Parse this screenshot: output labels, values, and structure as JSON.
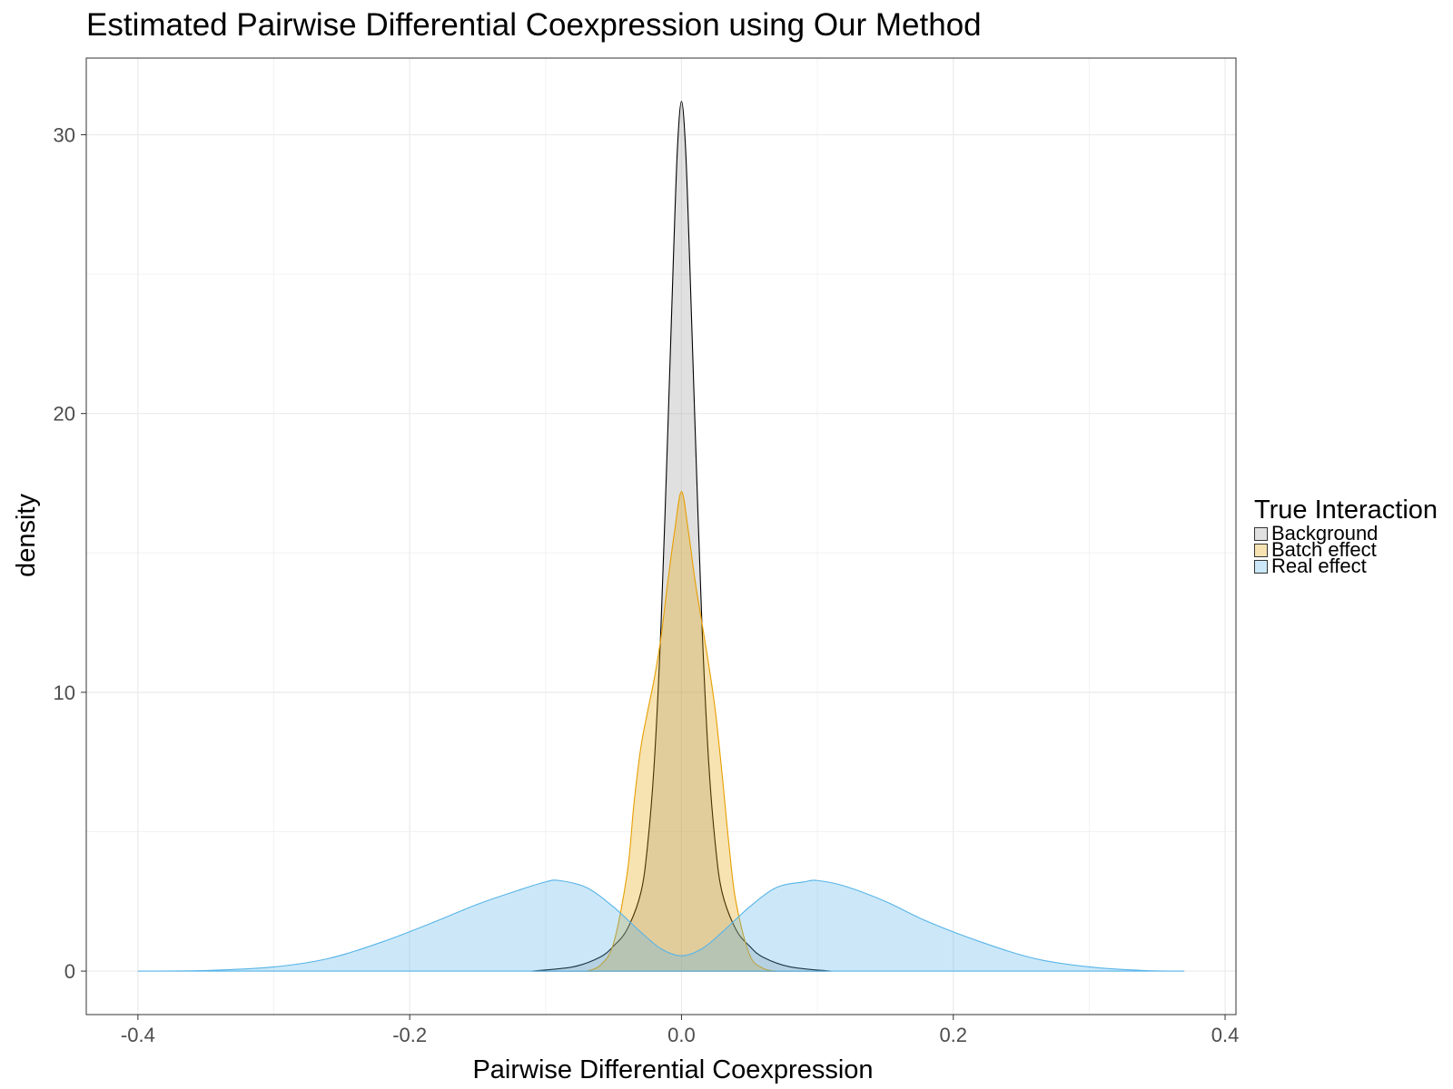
{
  "chart_data": {
    "type": "area",
    "title": "Estimated Pairwise Differential Coexpression using Our Method",
    "xlabel": "Pairwise Differential Coexpression",
    "ylabel": "density",
    "xlim": [
      -0.438,
      0.408
    ],
    "ylim": [
      -1.56,
      32.75
    ],
    "x_ticks": [
      -0.4,
      -0.2,
      0.0,
      0.2,
      0.4
    ],
    "x_tick_labels": [
      "-0.4",
      "-0.2",
      "0.0",
      "0.2",
      "0.4"
    ],
    "y_ticks": [
      0,
      10,
      20,
      30
    ],
    "y_tick_labels": [
      "0",
      "10",
      "20",
      "30"
    ],
    "grid": true,
    "legend": {
      "title": "True Interaction",
      "placement": "right"
    },
    "series": [
      {
        "name": "Background",
        "fill": "#999999",
        "stroke": "#000000",
        "x": [
          -0.11,
          -0.08,
          -0.06,
          -0.05,
          -0.04,
          -0.03,
          -0.025,
          -0.02,
          -0.015,
          -0.01,
          -0.006,
          -0.003,
          0.0,
          0.003,
          0.006,
          0.01,
          0.015,
          0.02,
          0.025,
          0.03,
          0.04,
          0.05,
          0.06,
          0.08,
          0.11
        ],
        "y": [
          0.0,
          0.15,
          0.5,
          0.9,
          1.5,
          2.8,
          4.5,
          7.5,
          12.5,
          19.5,
          25.5,
          29.5,
          31.2,
          29.5,
          25.5,
          19.5,
          12.5,
          7.5,
          4.5,
          2.8,
          1.5,
          0.9,
          0.5,
          0.15,
          0.0
        ]
      },
      {
        "name": "Batch effect",
        "fill": "#E69F00",
        "stroke": "#E69F00",
        "x": [
          -0.07,
          -0.06,
          -0.05,
          -0.04,
          -0.035,
          -0.03,
          -0.025,
          -0.02,
          -0.015,
          -0.01,
          -0.005,
          0.0,
          0.005,
          0.01,
          0.015,
          0.02,
          0.025,
          0.03,
          0.035,
          0.04,
          0.05,
          0.06,
          0.07
        ],
        "y": [
          0.0,
          0.2,
          1.0,
          3.5,
          6.0,
          8.0,
          9.3,
          10.5,
          12.0,
          14.0,
          15.8,
          17.2,
          15.8,
          14.0,
          12.5,
          11.0,
          9.3,
          7.0,
          4.5,
          2.5,
          0.6,
          0.1,
          0.0
        ]
      },
      {
        "name": "Real effect",
        "fill": "#56B4E9",
        "stroke": "#56B4E9",
        "x": [
          -0.4,
          -0.35,
          -0.3,
          -0.26,
          -0.22,
          -0.18,
          -0.15,
          -0.12,
          -0.1,
          -0.09,
          -0.07,
          -0.05,
          -0.03,
          -0.015,
          0.0,
          0.015,
          0.03,
          0.05,
          0.07,
          0.09,
          0.1,
          0.12,
          0.15,
          0.18,
          0.22,
          0.26,
          0.3,
          0.34,
          0.37
        ],
        "y": [
          0.0,
          0.02,
          0.15,
          0.45,
          1.05,
          1.8,
          2.4,
          2.9,
          3.2,
          3.25,
          3.0,
          2.3,
          1.4,
          0.8,
          0.55,
          0.8,
          1.4,
          2.3,
          3.0,
          3.2,
          3.25,
          3.05,
          2.5,
          1.8,
          1.05,
          0.45,
          0.15,
          0.02,
          0.0
        ]
      }
    ]
  }
}
